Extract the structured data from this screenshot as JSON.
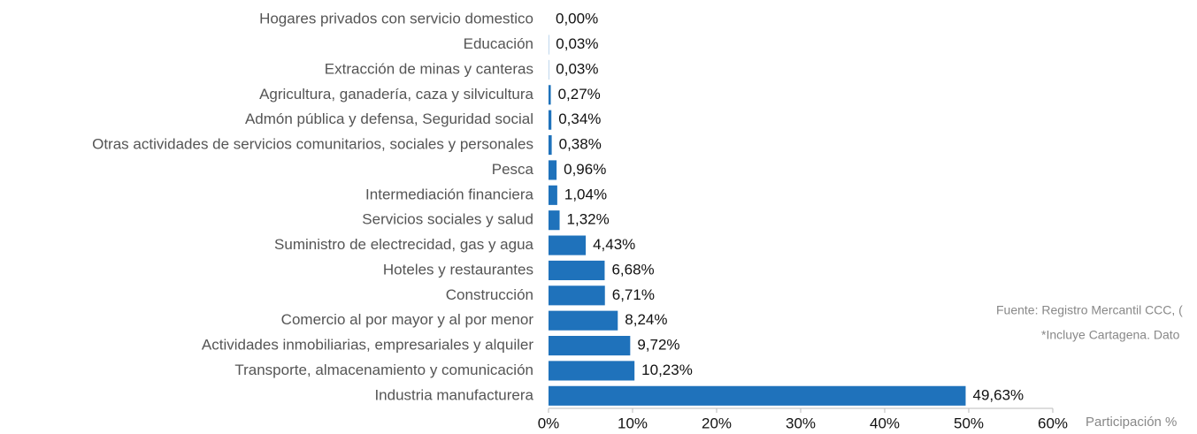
{
  "chart_data": {
    "type": "barh",
    "categories": [
      "Hogares privados con servicio domestico",
      "Educación",
      "Extracción de minas y canteras",
      "Agricultura, ganadería, caza y silvicultura",
      "Admón pública y defensa, Seguridad social",
      "Otras actividades de servicios comunitarios, sociales y personales",
      "Pesca",
      "Intermediación financiera",
      "Servicios sociales y salud",
      "Suministro de electrecidad, gas y agua",
      "Hoteles y restaurantes",
      "Construcción",
      "Comercio al por mayor y al por menor",
      "Actividades inmobiliarias, empresariales y alquiler",
      "Transporte, almacenamiento y comunicación",
      "Industria manufacturera"
    ],
    "values": [
      0.0,
      0.03,
      0.03,
      0.27,
      0.34,
      0.38,
      0.96,
      1.04,
      1.32,
      4.43,
      6.68,
      6.71,
      8.24,
      9.72,
      10.23,
      49.63
    ],
    "value_labels": [
      "0,00%",
      "0,03%",
      "0,03%",
      "0,27%",
      "0,34%",
      "0,38%",
      "0,96%",
      "1,04%",
      "1,32%",
      "4,43%",
      "6,68%",
      "6,71%",
      "8,24%",
      "9,72%",
      "10,23%",
      "49,63%"
    ],
    "color": "#1f72bb",
    "xlim": [
      0,
      60
    ],
    "xticks": [
      {
        "value": 0,
        "label": "0%"
      },
      {
        "value": 10,
        "label": "10%"
      },
      {
        "value": 20,
        "label": "20%"
      },
      {
        "value": 30,
        "label": "30%"
      },
      {
        "value": 40,
        "label": "40%"
      },
      {
        "value": 50,
        "label": "50%"
      },
      {
        "value": 60,
        "label": "60%"
      }
    ],
    "xlabel": "Participación %",
    "annotations": [
      "Fuente: Registro Mercantil CCC, (",
      "*Incluye Cartagena. Dato"
    ]
  }
}
